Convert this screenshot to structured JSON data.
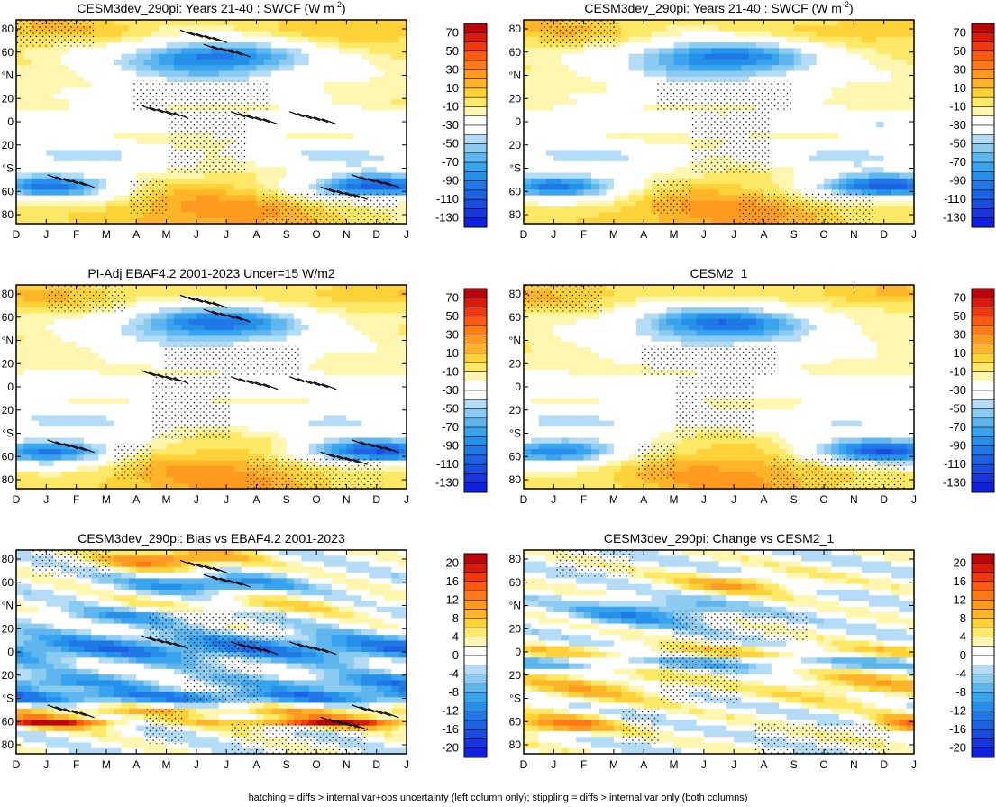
{
  "footnote": "hatching = diffs > internal var+obs uncertainty (left column only); stippling = diffs > internal var only (both columns)",
  "colors": {
    "white": "#ffffff",
    "warm": [
      "#fff6b0",
      "#ffe866",
      "#ffd23a",
      "#ffb42a",
      "#ff9a20",
      "#ff7a18",
      "#ff5a12",
      "#f03a0e",
      "#d81b0a",
      "#b8060a"
    ],
    "cool": [
      "#b4dcf6",
      "#8ccbf0",
      "#5fb6ee",
      "#39a4ee",
      "#2590ea",
      "#1f78e6",
      "#1c62e2",
      "#1a4cde",
      "#1836da",
      "#1020e0"
    ]
  },
  "chart_data": [
    {
      "type": "heatmap",
      "title": "CESM3dev_290pi: Years 21-40 : SWCF (W m",
      "title_sup": "-2",
      "title_end": ")",
      "x_ticks": [
        "D",
        "J",
        "F",
        "M",
        "A",
        "M",
        "J",
        "J",
        "A",
        "S",
        "O",
        "N",
        "D",
        "J"
      ],
      "y_ticks": [
        "80",
        "60",
        "°N",
        "20",
        "0",
        "20",
        "°S",
        "60",
        "80"
      ],
      "ylim": [
        -90,
        90
      ],
      "colorbar_labels": [
        "70",
        "50",
        "30",
        "10",
        "-10",
        "-30",
        "-50",
        "-70",
        "-90",
        "-110",
        "-130"
      ],
      "field": "swcf_a",
      "hatching": true
    },
    {
      "type": "heatmap",
      "title": "CESM3dev_290pi: Years 21-40 : SWCF (W m",
      "title_sup": "-2",
      "title_end": ")",
      "x_ticks": [
        "D",
        "J",
        "F",
        "M",
        "A",
        "M",
        "J",
        "J",
        "A",
        "S",
        "O",
        "N",
        "D",
        "J"
      ],
      "y_ticks": [
        "80",
        "60",
        "°N",
        "20",
        "0",
        "20",
        "°S",
        "60",
        "80"
      ],
      "ylim": [
        -90,
        90
      ],
      "colorbar_labels": [
        "70",
        "50",
        "30",
        "10",
        "-10",
        "-30",
        "-50",
        "-70",
        "-90",
        "-110",
        "-130"
      ],
      "field": "swcf_b",
      "hatching": false
    },
    {
      "type": "heatmap",
      "title": "PI-Adj EBAF4.2 2001-2023 Uncer=15 W/m2",
      "title_sup": "",
      "title_end": "",
      "x_ticks": [
        "D",
        "J",
        "F",
        "M",
        "A",
        "M",
        "J",
        "J",
        "A",
        "S",
        "O",
        "N",
        "D",
        "J"
      ],
      "y_ticks": [
        "80",
        "60",
        "°N",
        "20",
        "0",
        "20",
        "°S",
        "60",
        "80"
      ],
      "ylim": [
        -90,
        90
      ],
      "colorbar_labels": [
        "70",
        "50",
        "30",
        "10",
        "-10",
        "-30",
        "-50",
        "-70",
        "-90",
        "-110",
        "-130"
      ],
      "field": "swcf_obs",
      "hatching": true
    },
    {
      "type": "heatmap",
      "title": "CESM2_1",
      "title_sup": "",
      "title_end": "",
      "x_ticks": [
        "D",
        "J",
        "F",
        "M",
        "A",
        "M",
        "J",
        "J",
        "A",
        "S",
        "O",
        "N",
        "D",
        "J"
      ],
      "y_ticks": [
        "80",
        "60",
        "°N",
        "20",
        "0",
        "20",
        "°S",
        "60",
        "80"
      ],
      "ylim": [
        -90,
        90
      ],
      "colorbar_labels": [
        "70",
        "50",
        "30",
        "10",
        "-10",
        "-30",
        "-50",
        "-70",
        "-90",
        "-110",
        "-130"
      ],
      "field": "swcf_cesm2",
      "hatching": false
    },
    {
      "type": "heatmap",
      "title": "CESM3dev_290pi: Bias vs EBAF4.2 2001-2023",
      "title_sup": "",
      "title_end": "",
      "x_ticks": [
        "D",
        "J",
        "F",
        "M",
        "A",
        "M",
        "J",
        "J",
        "A",
        "S",
        "O",
        "N",
        "D",
        "J"
      ],
      "y_ticks": [
        "80",
        "60",
        "°N",
        "20",
        "0",
        "20",
        "°S",
        "60",
        "80"
      ],
      "ylim": [
        -90,
        90
      ],
      "colorbar_labels": [
        "20",
        "16",
        "12",
        "8",
        "4",
        "0",
        "-4",
        "-8",
        "-12",
        "-16",
        "-20"
      ],
      "field": "bias_obs",
      "hatching": true
    },
    {
      "type": "heatmap",
      "title": "CESM3dev_290pi: Change vs CESM2_1",
      "title_sup": "",
      "title_end": "",
      "x_ticks": [
        "D",
        "J",
        "F",
        "M",
        "A",
        "M",
        "J",
        "J",
        "A",
        "S",
        "O",
        "N",
        "D",
        "J"
      ],
      "y_ticks": [
        "80",
        "60",
        "°N",
        "20",
        "0",
        "20",
        "°S",
        "60",
        "80"
      ],
      "ylim": [
        -90,
        90
      ],
      "colorbar_labels": [
        "20",
        "16",
        "12",
        "8",
        "4",
        "0",
        "-4",
        "-8",
        "-12",
        "-16",
        "-20"
      ],
      "field": "bias_cesm2",
      "hatching": false
    }
  ]
}
